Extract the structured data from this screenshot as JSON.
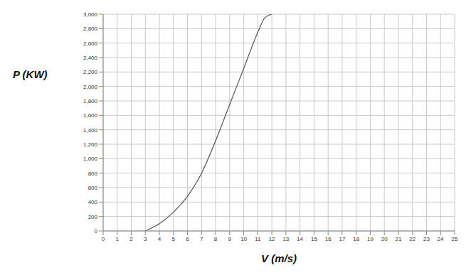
{
  "chart_data": {
    "type": "line",
    "x_label": "V (m/s)",
    "y_label": "P (KW)",
    "x": [
      3,
      4,
      5,
      6,
      7,
      8,
      9,
      10,
      11,
      11.5,
      12
    ],
    "series": [
      {
        "name": "P",
        "color": "#555555",
        "values": [
          0,
          100,
          260,
          480,
          800,
          1250,
          1750,
          2250,
          2750,
          2950,
          3000
        ]
      }
    ],
    "xlim": [
      0,
      25
    ],
    "xticks": [
      0,
      1,
      2,
      3,
      4,
      5,
      6,
      7,
      8,
      9,
      10,
      11,
      12,
      13,
      14,
      15,
      16,
      17,
      18,
      19,
      20,
      21,
      22,
      23,
      24,
      25
    ],
    "ylim": [
      0,
      3000
    ],
    "yticks": [
      0,
      200,
      400,
      600,
      800,
      {
        "value": 1000,
        "label": "1,000"
      },
      {
        "value": 1200,
        "label": "1,200"
      },
      {
        "value": 1400,
        "label": "1,400"
      },
      {
        "value": 1600,
        "label": "1,600"
      },
      {
        "value": 1800,
        "label": "1,800"
      },
      {
        "value": 2000,
        "label": "2,000"
      },
      {
        "value": 2200,
        "label": "2,200"
      },
      {
        "value": 2400,
        "label": "2,400"
      },
      {
        "value": 2600,
        "label": "2,600"
      },
      {
        "value": 2800,
        "label": "2,800"
      },
      {
        "value": 3000,
        "label": "3,000"
      }
    ],
    "grid": true
  }
}
